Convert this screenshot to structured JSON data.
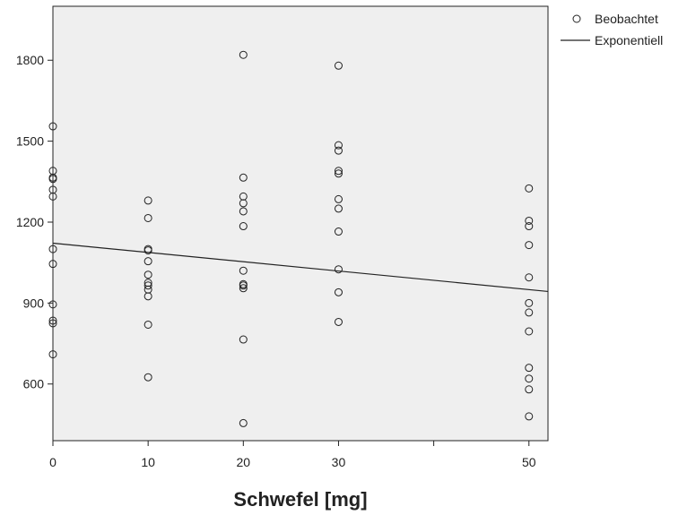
{
  "chart_data": {
    "type": "scatter",
    "title": "",
    "xlabel": "Schwefel [mg]",
    "ylabel": "",
    "xlim": [
      0,
      52
    ],
    "ylim": [
      390,
      2000
    ],
    "xticks": [
      0,
      10,
      20,
      30,
      50
    ],
    "yticks": [
      600,
      900,
      1200,
      1500,
      1800
    ],
    "x_minor_ticks": [
      40
    ],
    "grid": false,
    "legend_position": "top-right",
    "colors": {
      "plot_background": "#efefef",
      "points": "#222222",
      "line": "#222222"
    },
    "series": [
      {
        "name": "Beobachtet",
        "kind": "points",
        "points": [
          [
            0,
            1555
          ],
          [
            0,
            1390
          ],
          [
            0,
            1365
          ],
          [
            0,
            1360
          ],
          [
            0,
            1320
          ],
          [
            0,
            1295
          ],
          [
            0,
            1100
          ],
          [
            0,
            1045
          ],
          [
            0,
            895
          ],
          [
            0,
            835
          ],
          [
            0,
            825
          ],
          [
            0,
            710
          ],
          [
            10,
            1280
          ],
          [
            10,
            1215
          ],
          [
            10,
            1100
          ],
          [
            10,
            1095
          ],
          [
            10,
            1055
          ],
          [
            10,
            1005
          ],
          [
            10,
            975
          ],
          [
            10,
            965
          ],
          [
            10,
            950
          ],
          [
            10,
            925
          ],
          [
            10,
            820
          ],
          [
            10,
            625
          ],
          [
            20,
            1820
          ],
          [
            20,
            1365
          ],
          [
            20,
            1295
          ],
          [
            20,
            1270
          ],
          [
            20,
            1240
          ],
          [
            20,
            1185
          ],
          [
            20,
            1020
          ],
          [
            20,
            970
          ],
          [
            20,
            965
          ],
          [
            20,
            955
          ],
          [
            20,
            765
          ],
          [
            20,
            455
          ],
          [
            30,
            1780
          ],
          [
            30,
            1485
          ],
          [
            30,
            1465
          ],
          [
            30,
            1390
          ],
          [
            30,
            1380
          ],
          [
            30,
            1285
          ],
          [
            30,
            1250
          ],
          [
            30,
            1165
          ],
          [
            30,
            1025
          ],
          [
            30,
            940
          ],
          [
            30,
            830
          ],
          [
            50,
            1325
          ],
          [
            50,
            1205
          ],
          [
            50,
            1185
          ],
          [
            50,
            1115
          ],
          [
            50,
            995
          ],
          [
            50,
            900
          ],
          [
            50,
            865
          ],
          [
            50,
            795
          ],
          [
            50,
            660
          ],
          [
            50,
            620
          ],
          [
            50,
            580
          ],
          [
            50,
            480
          ]
        ]
      },
      {
        "name": "Exponentiell",
        "kind": "line",
        "points": [
          [
            0,
            1122
          ],
          [
            52,
            943
          ]
        ]
      }
    ]
  }
}
